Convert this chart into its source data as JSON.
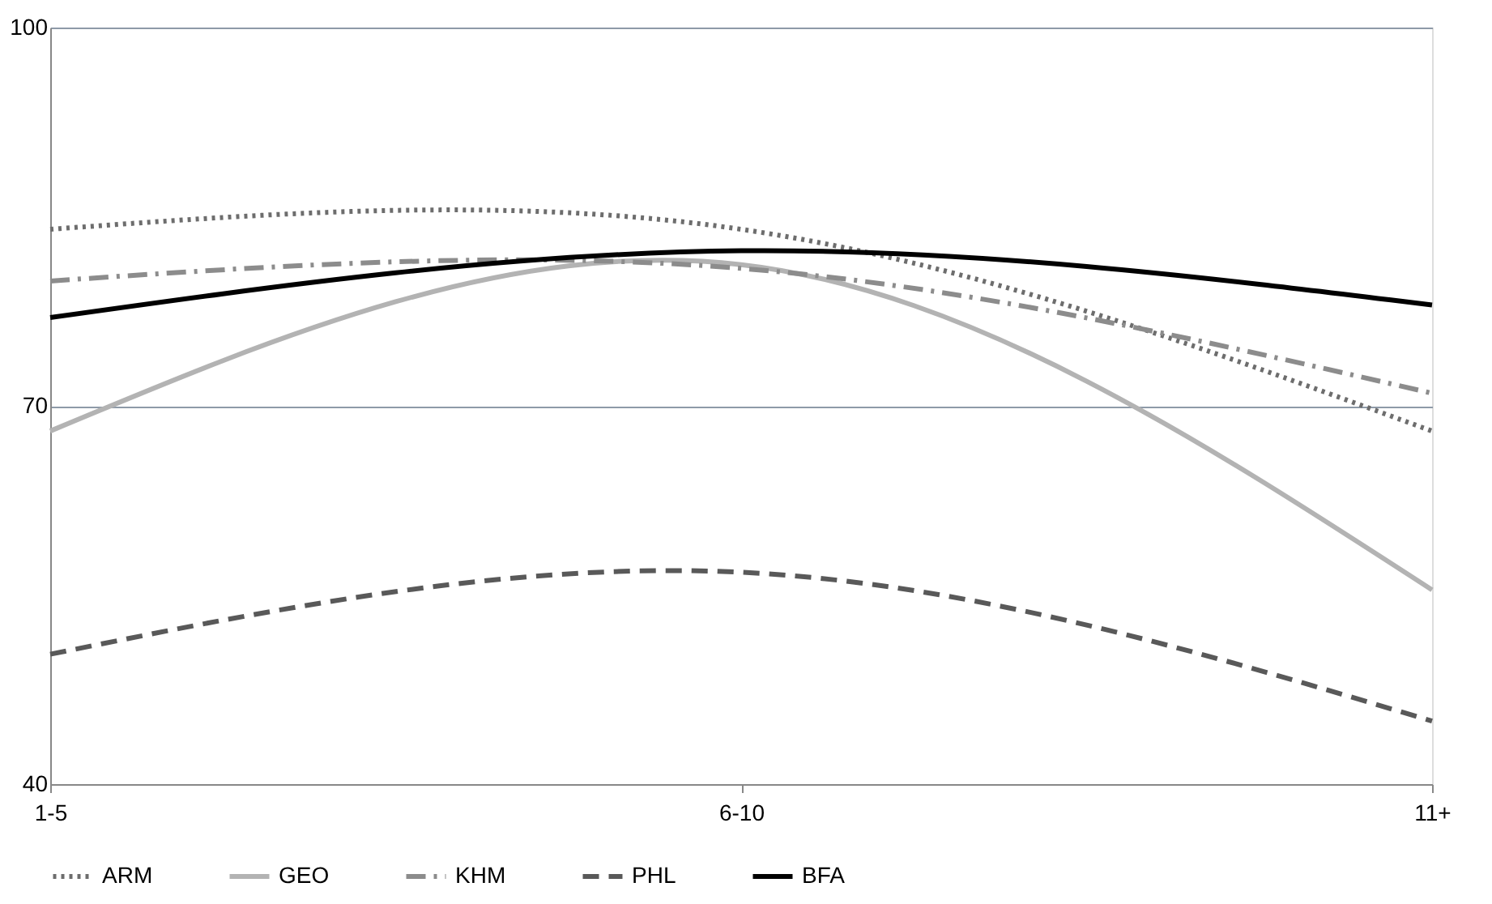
{
  "chart_data": {
    "type": "line",
    "categories": [
      "1-5",
      "6-10",
      "11+"
    ],
    "series": [
      {
        "name": "ARM",
        "color": "#6d6d6d",
        "line_style": "dotted",
        "values": [
          84.0,
          84.0,
          68.0
        ]
      },
      {
        "name": "GEO",
        "color": "#b3b3b3",
        "line_style": "solid",
        "values": [
          68.0,
          81.2,
          55.4
        ]
      },
      {
        "name": "KHM",
        "color": "#8c8c8c",
        "line_style": "dashdot",
        "values": [
          79.9,
          80.9,
          71.0
        ]
      },
      {
        "name": "PHL",
        "color": "#595959",
        "line_style": "dashed",
        "values": [
          50.3,
          56.8,
          45.0
        ]
      },
      {
        "name": "BFA",
        "color": "#000000",
        "line_style": "solid",
        "values": [
          77.0,
          82.3,
          78.0
        ]
      }
    ],
    "ylim": [
      40,
      100
    ],
    "yticks": [
      40,
      70,
      100
    ],
    "grid": "y",
    "legend": "bottom",
    "marker": "none"
  }
}
